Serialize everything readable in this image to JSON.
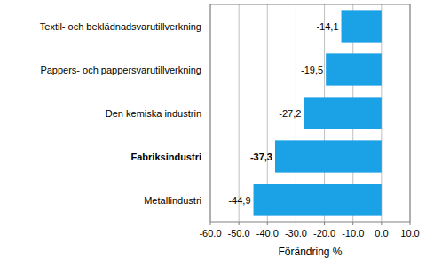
{
  "chart_data": {
    "type": "bar",
    "orientation": "horizontal",
    "categories": [
      "Textil- och beklädnadsvarutillverkning",
      "Pappers- och pappersvarutillverkning",
      "Den kemiska industrin",
      "Fabriksindustri",
      "Metallindustri"
    ],
    "values": [
      -14.1,
      -19.5,
      -27.2,
      -37.3,
      -44.9
    ],
    "value_labels": [
      "-14,1",
      "-19,5",
      "-27,2",
      "-37,3",
      "-44,9"
    ],
    "data_labels": true,
    "color": "#1ba1e6",
    "x_label": "Förändring %",
    "xlim": [
      -60,
      10
    ],
    "xticks": [
      {
        "value": -60,
        "label": "-60.0"
      },
      {
        "value": -50,
        "label": "-50.0"
      },
      {
        "value": -40,
        "label": "-40.0"
      },
      {
        "value": -30,
        "label": "-30.0"
      },
      {
        "value": -20,
        "label": "-20.0"
      },
      {
        "value": -10,
        "label": "-10.0"
      },
      {
        "value": 0,
        "label": "0.0"
      },
      {
        "value": 10,
        "label": "10.0"
      }
    ],
    "grid": true
  }
}
